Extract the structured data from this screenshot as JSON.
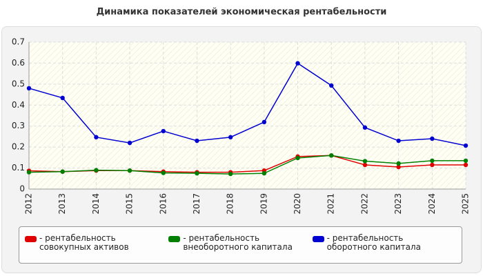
{
  "chart_data": {
    "type": "line",
    "title": "Динамика показателей экономическая рентабельности",
    "categories": [
      "2012",
      "2013",
      "2014",
      "2015",
      "2016",
      "2017",
      "2018",
      "2019",
      "2020",
      "2021",
      "2022",
      "2023",
      "2024",
      "2025"
    ],
    "series": [
      {
        "name": "- рентабельность совокупных активов",
        "color": "#e00000",
        "values": [
          0.087,
          0.083,
          0.088,
          0.088,
          0.083,
          0.08,
          0.08,
          0.088,
          0.155,
          0.16,
          0.115,
          0.105,
          0.115,
          0.115
        ]
      },
      {
        "name": "- рентабельность внеоборотного капитала",
        "color": "#008000",
        "values": [
          0.08,
          0.083,
          0.09,
          0.088,
          0.077,
          0.075,
          0.072,
          0.075,
          0.148,
          0.16,
          0.133,
          0.122,
          0.135,
          0.135
        ]
      },
      {
        "name": "- рентабельность оборотного капитала",
        "color": "#0000d0",
        "values": [
          0.48,
          0.434,
          0.247,
          0.22,
          0.276,
          0.23,
          0.247,
          0.319,
          0.599,
          0.493,
          0.293,
          0.23,
          0.24,
          0.207
        ]
      }
    ],
    "ylim": [
      0,
      0.7
    ],
    "yticks": [
      0,
      0.1,
      0.2,
      0.3,
      0.4,
      0.5,
      0.6,
      0.7
    ],
    "grid": true
  }
}
